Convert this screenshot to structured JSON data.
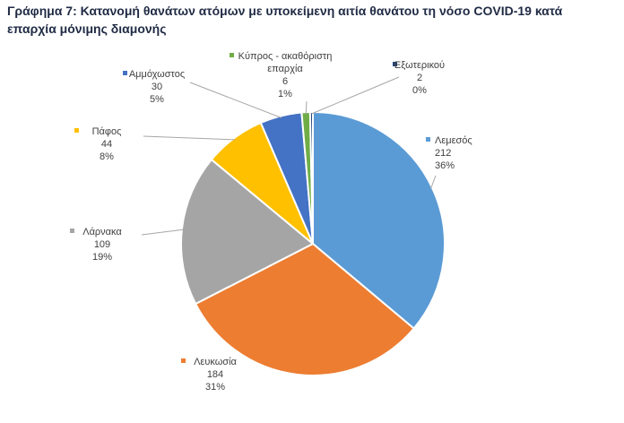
{
  "title_line1": "Γράφημα 7: Κατανομή θανάτων ατόμων με υποκείμενη αιτία θανάτου τη νόσο COVID-19 κατά",
  "title_line2": "επαρχία μόνιμης διαμονής",
  "chart_data": {
    "type": "pie",
    "title": "",
    "slices": [
      {
        "label": "Λεμεσός",
        "value": 212,
        "percent": "36%",
        "color": "#5B9BD5"
      },
      {
        "label": "Λευκωσία",
        "value": 184,
        "percent": "31%",
        "color": "#ED7D31"
      },
      {
        "label": "Λάρνακα",
        "value": 109,
        "percent": "19%",
        "color": "#A5A5A5"
      },
      {
        "label": "Πάφος",
        "value": 44,
        "percent": "8%",
        "color": "#FFC000"
      },
      {
        "label": "Αμμόχωστος",
        "value": 30,
        "percent": "5%",
        "color": "#4472C4"
      },
      {
        "label": "Κύπρος - ακαθόριστη επαρχία",
        "label_lines": [
          "Κύπρος - ακαθόριστη",
          "επαρχία"
        ],
        "value": 6,
        "percent": "1%",
        "color": "#70AD47"
      },
      {
        "label": "Εξωτερικού",
        "value": 2,
        "percent": "0%",
        "color": "#264478"
      }
    ]
  }
}
